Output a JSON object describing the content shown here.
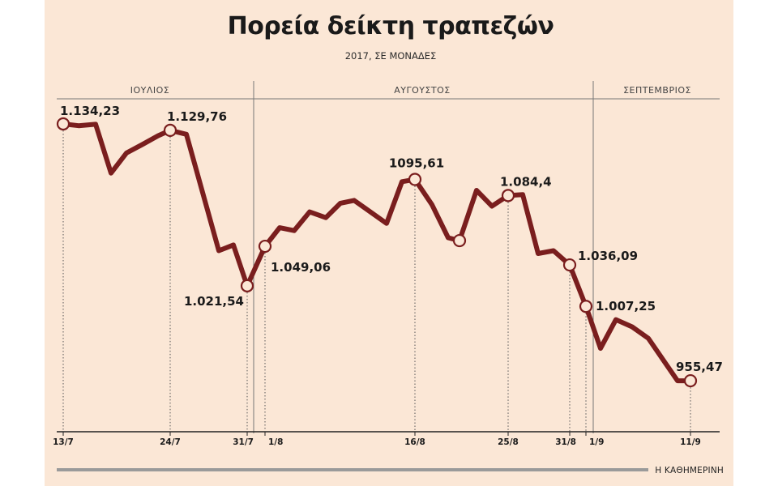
{
  "chart_data": {
    "type": "line",
    "title": "Πορεία δείκτη τραπεζών",
    "subtitle": "2017, ΣΕ ΜΟΝΑΔΕΣ",
    "source": "Η ΚΑΘΗΜΕΡΙΝΗ",
    "months": [
      "ΙΟΥΛΙΟΣ",
      "ΑΥΓΟΥΣΤΟΣ",
      "ΣΕΠΤΕΜΒΡΙΟΣ"
    ],
    "ylim": [
      920,
      1150
    ],
    "grid": false,
    "series": [
      {
        "color": "#7a1e1e",
        "values": [
          1134.23,
          1133,
          1134,
          1100,
          1114,
          1120,
          1126,
          1129.76,
          1127,
          1046,
          1050,
          1021.54,
          1049.06,
          1062,
          1060,
          1073,
          1069,
          1079,
          1081,
          1065,
          1094,
          1095.61,
          1078,
          1055,
          1053,
          1088,
          1077,
          1084.4,
          1085,
          1044,
          1046,
          1036.09,
          1007.25,
          978,
          998,
          993,
          985,
          955.47,
          955.47
        ]
      }
    ],
    "labeled_points": [
      {
        "index": 0,
        "value": "1.134,23",
        "anchor": "above"
      },
      {
        "index": 7,
        "value": "1.129,76",
        "anchor": "above"
      },
      {
        "index": 11,
        "value": "1.021,54",
        "anchor": "below-left"
      },
      {
        "index": 12,
        "value": "1.049,06",
        "anchor": "below-right"
      },
      {
        "index": 21,
        "value": "1095,61",
        "anchor": "above"
      },
      {
        "index": 24,
        "value": "",
        "anchor": "none"
      },
      {
        "index": 27,
        "value": "1.084,4",
        "anchor": "above"
      },
      {
        "index": 31,
        "value": "1.036,09",
        "anchor": "right"
      },
      {
        "index": 32,
        "value": "1.007,25",
        "anchor": "right"
      },
      {
        "index": 38,
        "value": "955,47",
        "anchor": "above"
      }
    ],
    "x_ticks": [
      {
        "index": 0,
        "label": "13/7"
      },
      {
        "index": 7,
        "label": "24/7"
      },
      {
        "index": 11,
        "label": "31/7"
      },
      {
        "index": 12,
        "label": "1/8"
      },
      {
        "index": 21,
        "label": "16/8"
      },
      {
        "index": 27,
        "label": "25/8"
      },
      {
        "index": 31,
        "label": "31/8"
      },
      {
        "index": 32,
        "label": "1/9"
      },
      {
        "index": 38,
        "label": "11/9"
      }
    ]
  }
}
